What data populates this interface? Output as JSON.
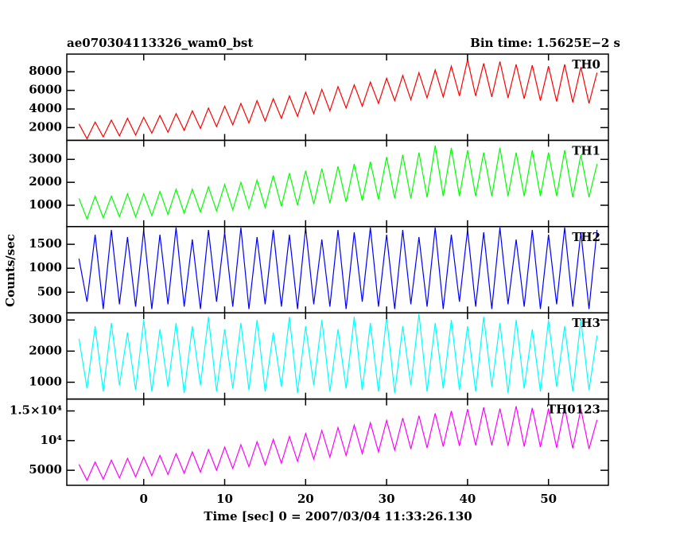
{
  "chart_data": {
    "type": "line",
    "title": "ae070304113326_wam0_bst",
    "subtitle": "Bin time: 1.5625E−2 s",
    "ylabel": "Counts/sec",
    "xlabel": "Time [sec] 0 = 2007/03/04 11:33:26.130",
    "xlim": [
      -9.5,
      57.4
    ],
    "xticks": [
      0,
      10,
      20,
      30,
      40,
      50
    ],
    "x": [
      -8,
      -7,
      -6,
      -5,
      -4,
      -3,
      -2,
      -1,
      0,
      1,
      2,
      3,
      4,
      5,
      6,
      7,
      8,
      9,
      10,
      11,
      12,
      13,
      14,
      15,
      16,
      17,
      18,
      19,
      20,
      21,
      22,
      23,
      24,
      25,
      26,
      27,
      28,
      29,
      30,
      31,
      32,
      33,
      34,
      35,
      36,
      37,
      38,
      39,
      40,
      41,
      42,
      43,
      44,
      45,
      46,
      47,
      48,
      49,
      50,
      51,
      52,
      53,
      54,
      55,
      56
    ],
    "series": [
      {
        "name": "TH0",
        "color": "#ff0000",
        "ylim": [
          630,
          9900
        ],
        "yticks": [
          2000,
          4000,
          6000,
          8000
        ],
        "values": [
          2400,
          800,
          2600,
          1000,
          2800,
          1100,
          3000,
          1200,
          3100,
          1400,
          3300,
          1500,
          3500,
          1700,
          3800,
          1900,
          4100,
          2100,
          4300,
          2300,
          4600,
          2500,
          4900,
          2700,
          5100,
          3000,
          5400,
          3200,
          5800,
          3500,
          6100,
          3800,
          6400,
          4100,
          6600,
          4300,
          6900,
          4600,
          7300,
          4900,
          7600,
          5000,
          7900,
          5200,
          8200,
          5300,
          8600,
          5400,
          9300,
          5400,
          8900,
          5300,
          9100,
          5200,
          8800,
          5100,
          8700,
          4900,
          8600,
          4800,
          8800,
          4700,
          8500,
          4600,
          7900
        ]
      },
      {
        "name": "TH1",
        "color": "#00ff00",
        "ylim": [
          70,
          3830
        ],
        "yticks": [
          1000,
          2000,
          3000
        ],
        "values": [
          1300,
          400,
          1400,
          450,
          1400,
          500,
          1500,
          500,
          1500,
          550,
          1600,
          600,
          1700,
          650,
          1700,
          700,
          1800,
          750,
          1900,
          800,
          2000,
          850,
          2100,
          900,
          2300,
          950,
          2400,
          1000,
          2500,
          1050,
          2600,
          1100,
          2700,
          1150,
          2800,
          1200,
          2900,
          1250,
          3100,
          1300,
          3200,
          1300,
          3300,
          1350,
          3600,
          1400,
          3500,
          1400,
          3400,
          1400,
          3300,
          1400,
          3500,
          1400,
          3300,
          1400,
          3400,
          1400,
          3300,
          1400,
          3400,
          1350,
          3200,
          1350,
          2800
        ]
      },
      {
        "name": "TH2",
        "color": "#0000ff",
        "ylim": [
          70,
          1870
        ],
        "yticks": [
          500,
          1000,
          1500
        ],
        "values": [
          1200,
          300,
          1700,
          150,
          1800,
          250,
          1650,
          200,
          1800,
          150,
          1700,
          250,
          1850,
          200,
          1600,
          150,
          1800,
          300,
          1750,
          200,
          1850,
          150,
          1650,
          250,
          1800,
          200,
          1700,
          150,
          1850,
          250,
          1600,
          200,
          1800,
          150,
          1750,
          300,
          1850,
          200,
          1700,
          150,
          1800,
          250,
          1650,
          200,
          1850,
          150,
          1700,
          300,
          1800,
          200,
          1750,
          150,
          1850,
          250,
          1600,
          200,
          1800,
          150,
          1700,
          250,
          1850,
          200,
          1750,
          150,
          1800
        ]
      },
      {
        "name": "TH3",
        "color": "#00ffff",
        "ylim": [
          460,
          3230
        ],
        "yticks": [
          1000,
          2000,
          3000
        ],
        "values": [
          2400,
          800,
          2800,
          700,
          2900,
          900,
          2600,
          750,
          3000,
          700,
          2700,
          850,
          2900,
          650,
          2800,
          900,
          3100,
          700,
          2700,
          800,
          2900,
          750,
          3000,
          700,
          2600,
          850,
          3100,
          650,
          2800,
          900,
          3000,
          700,
          2700,
          800,
          3100,
          750,
          2900,
          700,
          3100,
          650,
          2800,
          900,
          3200,
          700,
          2900,
          800,
          3000,
          750,
          2800,
          700,
          3100,
          850,
          2900,
          650,
          3000,
          800,
          2700,
          700,
          3000,
          850,
          2800,
          700,
          3000,
          750,
          2500
        ]
      },
      {
        "name": "TH0123",
        "color": "#ff00ff",
        "ylim": [
          2470,
          17000
        ],
        "yticks": [
          5000,
          {
            "value": 10000,
            "label": "10⁴"
          },
          {
            "value": 15000,
            "label": "1.5×10⁴"
          }
        ],
        "values": [
          6000,
          3300,
          6400,
          3500,
          6700,
          3700,
          7000,
          3900,
          7200,
          4100,
          7500,
          4300,
          7800,
          4500,
          8100,
          4700,
          8500,
          5000,
          8900,
          5300,
          9300,
          5600,
          9800,
          5900,
          10200,
          6200,
          10700,
          6500,
          11200,
          6900,
          11700,
          7200,
          12200,
          7500,
          12600,
          7800,
          13000,
          8100,
          13400,
          8400,
          13800,
          8600,
          14200,
          8800,
          14600,
          9000,
          15000,
          9100,
          15300,
          9200,
          15600,
          9200,
          15400,
          9100,
          15800,
          9000,
          15500,
          8900,
          15400,
          8800,
          15600,
          8700,
          15300,
          8600,
          13500
        ]
      }
    ]
  }
}
